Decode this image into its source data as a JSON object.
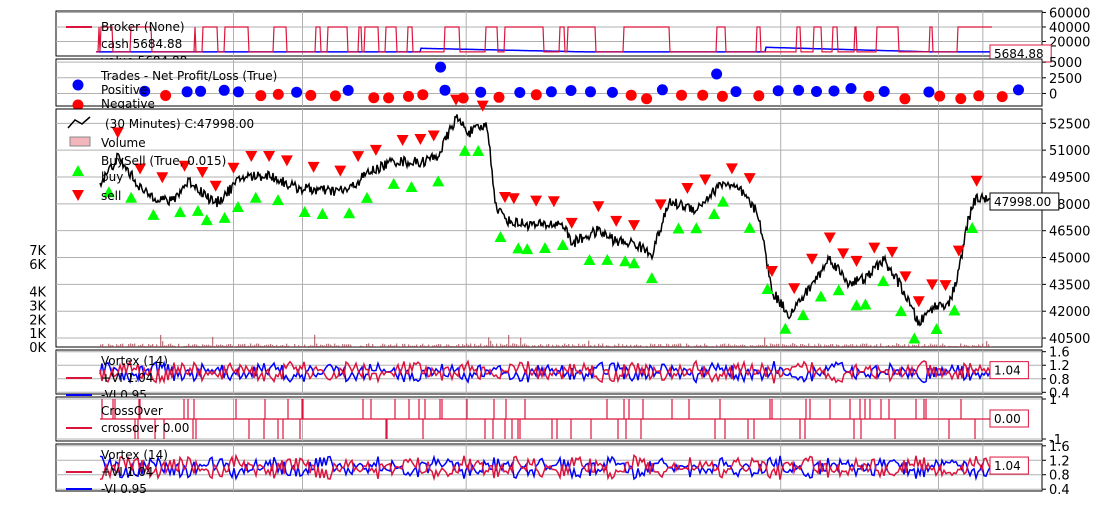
{
  "chart_data": [
    {
      "type": "line",
      "name": "broker",
      "legend": [
        "Broker (None)",
        "cash 5684.88",
        "value 5684.88"
      ],
      "last_value_tag": "5684.88",
      "y_ticks": [
        20000,
        40000,
        60000
      ],
      "ylim": [
        0,
        62000
      ],
      "series": [
        {
          "name": "cash",
          "color": "#dc143c",
          "baseline": 5684.88,
          "high": 40000
        },
        {
          "name": "value",
          "color": "#0000ff",
          "baseline": 5684.88,
          "bumps": [
            [
              0.37,
              14000
            ],
            [
              0.72,
              18000
            ]
          ]
        }
      ]
    },
    {
      "type": "scatter",
      "name": "trades",
      "legend": [
        "Trades - Net Profit/Loss (True)",
        "Positive",
        "Negative"
      ],
      "y_ticks": [
        0,
        2500,
        5000
      ],
      "ylim": [
        -2000,
        5500
      ],
      "colors": {
        "positive": "#0000ff",
        "negative": "#ff0000"
      }
    },
    {
      "type": "line",
      "name": "price",
      "legend": [
        "(30 Minutes) C:47998.00",
        "Volume",
        "BuySell (True, 0.015)",
        "buy",
        "sell"
      ],
      "last_value_tag": "47998.00",
      "y_ticks": [
        40500,
        42000,
        43500,
        45000,
        46500,
        48000,
        49500,
        51000,
        52500
      ],
      "ylim": [
        40000,
        53300
      ],
      "volume_ticks": [
        "0K",
        "1K",
        "2K",
        "3K",
        "4K",
        "6K",
        "7K"
      ],
      "volume_tick_values": [
        0,
        1000,
        2000,
        3000,
        4000,
        6000,
        7000
      ],
      "volume_max": 7000,
      "anchors": [
        [
          0,
          49100
        ],
        [
          0.02,
          50600
        ],
        [
          0.05,
          48600
        ],
        [
          0.08,
          48100
        ],
        [
          0.1,
          49300
        ],
        [
          0.13,
          48000
        ],
        [
          0.16,
          49500
        ],
        [
          0.19,
          49600
        ],
        [
          0.22,
          48900
        ],
        [
          0.26,
          48700
        ],
        [
          0.28,
          48800
        ],
        [
          0.3,
          49700
        ],
        [
          0.33,
          50400
        ],
        [
          0.36,
          50300
        ],
        [
          0.38,
          50700
        ],
        [
          0.4,
          52800
        ],
        [
          0.415,
          52000
        ],
        [
          0.435,
          52400
        ],
        [
          0.445,
          47800
        ],
        [
          0.46,
          47000
        ],
        [
          0.49,
          46800
        ],
        [
          0.52,
          46900
        ],
        [
          0.53,
          45800
        ],
        [
          0.56,
          46500
        ],
        [
          0.58,
          45900
        ],
        [
          0.6,
          45800
        ],
        [
          0.62,
          45200
        ],
        [
          0.64,
          48100
        ],
        [
          0.67,
          47700
        ],
        [
          0.7,
          49200
        ],
        [
          0.72,
          48700
        ],
        [
          0.74,
          47400
        ],
        [
          0.755,
          43100
        ],
        [
          0.775,
          41800
        ],
        [
          0.79,
          42800
        ],
        [
          0.81,
          44200
        ],
        [
          0.82,
          45000
        ],
        [
          0.84,
          43600
        ],
        [
          0.86,
          43800
        ],
        [
          0.88,
          44900
        ],
        [
          0.9,
          43400
        ],
        [
          0.92,
          41300
        ],
        [
          0.935,
          42200
        ],
        [
          0.955,
          42500
        ],
        [
          0.965,
          44200
        ],
        [
          0.975,
          47000
        ],
        [
          0.983,
          48200
        ],
        [
          0.993,
          48400
        ],
        [
          1.0,
          47998
        ]
      ],
      "buy_fracs": [
        0.01,
        0.035,
        0.06,
        0.09,
        0.11,
        0.12,
        0.14,
        0.155,
        0.175,
        0.2,
        0.23,
        0.25,
        0.28,
        0.3,
        0.33,
        0.35,
        0.38,
        0.41,
        0.425,
        0.45,
        0.47,
        0.48,
        0.5,
        0.52,
        0.55,
        0.57,
        0.59,
        0.6,
        0.62,
        0.65,
        0.67,
        0.69,
        0.7,
        0.73,
        0.75,
        0.77,
        0.79,
        0.81,
        0.83,
        0.85,
        0.86,
        0.88,
        0.9,
        0.915,
        0.94,
        0.96,
        0.98
      ],
      "sell_fracs": [
        0.02,
        0.045,
        0.07,
        0.095,
        0.115,
        0.13,
        0.15,
        0.17,
        0.19,
        0.21,
        0.24,
        0.27,
        0.29,
        0.31,
        0.34,
        0.36,
        0.375,
        0.4,
        0.43,
        0.455,
        0.465,
        0.49,
        0.51,
        0.53,
        0.56,
        0.58,
        0.6,
        0.63,
        0.66,
        0.68,
        0.71,
        0.73,
        0.755,
        0.78,
        0.8,
        0.82,
        0.835,
        0.85,
        0.87,
        0.89,
        0.905,
        0.92,
        0.935,
        0.95,
        0.965,
        0.985
      ]
    },
    {
      "type": "line",
      "name": "vortex1",
      "legend": [
        "Vortex (14)",
        "+VI 1.04",
        "-VI 0.95"
      ],
      "last_value_tag": "1.04",
      "y_ticks": [
        0.4,
        0.8,
        1.2,
        1.6
      ],
      "y_tick_labels": [
        "0.4",
        "0.8",
        "1.2",
        "1.6"
      ],
      "ylim": [
        0.35,
        1.65
      ],
      "series": [
        {
          "name": "+VI",
          "color": "#dc143c"
        },
        {
          "name": "-VI",
          "color": "#0000ff"
        }
      ]
    },
    {
      "type": "line",
      "name": "crossover",
      "legend": [
        "CrossOver",
        "crossover 0.00"
      ],
      "last_value_tag": "0.00",
      "y_ticks": [
        -1,
        1
      ],
      "y_tick_labels": [
        "-1",
        "1"
      ],
      "ylim": [
        -1.1,
        1.1
      ],
      "series": [
        {
          "name": "crossover",
          "color": "#dc143c"
        }
      ]
    },
    {
      "type": "line",
      "name": "vortex2",
      "legend": [
        "Vortex (14)",
        "+VI 1.04",
        "-VI 0.95"
      ],
      "last_value_tag": "1.04",
      "y_ticks": [
        0.4,
        0.8,
        1.2,
        1.6
      ],
      "y_tick_labels": [
        "0.4",
        "0.8",
        "1.2",
        "1.6"
      ],
      "ylim": [
        0.35,
        1.65
      ],
      "series": [
        {
          "name": "+VI",
          "color": "#dc143c"
        },
        {
          "name": "-VI",
          "color": "#0000ff"
        }
      ]
    }
  ],
  "x_grid_fractions": [
    0.18,
    0.25,
    0.416,
    0.735,
    0.895,
    0.94
  ],
  "colors": {
    "grid": "#b0b0b0",
    "price": "#000000",
    "buy": "#00ff00",
    "sell": "#ff0000",
    "volume": "#a0404a",
    "cash": "#dc143c",
    "value": "#0000ff"
  }
}
